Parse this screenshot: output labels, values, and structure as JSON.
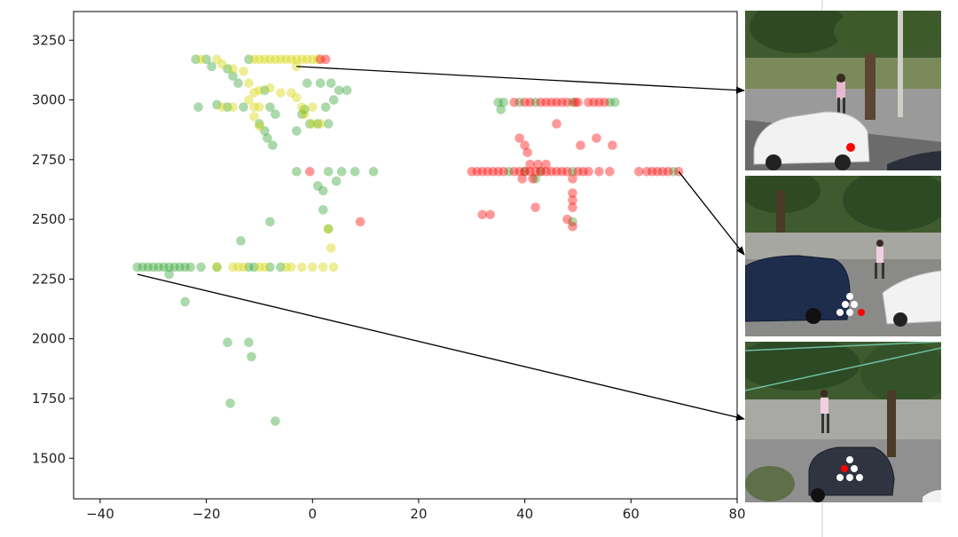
{
  "chart_data": {
    "type": "scatter",
    "title": "",
    "xlabel": "",
    "ylabel": "",
    "xlim": [
      -45,
      80
    ],
    "ylim": [
      1330,
      3370
    ],
    "xticks": [
      -40,
      -20,
      0,
      20,
      40,
      60,
      80
    ],
    "yticks": [
      1500,
      1750,
      2000,
      2250,
      2500,
      2750,
      3000,
      3250
    ],
    "grid": false,
    "legend": "none",
    "point_alpha": 0.4,
    "series": [
      {
        "color": "#2ca02c",
        "points": [
          [
            -22,
            3170
          ],
          [
            -20,
            3170
          ],
          [
            -19,
            3140
          ],
          [
            -16,
            3130
          ],
          [
            -15,
            3100
          ],
          [
            -14,
            3070
          ],
          [
            -12,
            3170
          ],
          [
            -9,
            3040
          ],
          [
            -21.5,
            2970
          ],
          [
            -18,
            2980
          ],
          [
            -16,
            2970
          ],
          [
            -13,
            2970
          ],
          [
            -8,
            2970
          ],
          [
            -7,
            2940
          ],
          [
            -1,
            3070
          ],
          [
            1.5,
            3070
          ],
          [
            3.5,
            3070
          ],
          [
            5,
            3040
          ],
          [
            6.5,
            3040
          ],
          [
            4,
            3000
          ],
          [
            2.5,
            2970
          ],
          [
            -1.5,
            2960
          ],
          [
            -2,
            2940
          ],
          [
            -0.5,
            2900
          ],
          [
            1,
            2900
          ],
          [
            3,
            2900
          ],
          [
            -10,
            2900
          ],
          [
            -9,
            2870
          ],
          [
            -8.5,
            2840
          ],
          [
            -7.5,
            2810
          ],
          [
            -3,
            2870
          ],
          [
            -3,
            2700
          ],
          [
            1,
            2640
          ],
          [
            2,
            2620
          ],
          [
            3,
            2700
          ],
          [
            4.5,
            2660
          ],
          [
            5.5,
            2700
          ],
          [
            8,
            2700
          ],
          [
            11.5,
            2700
          ],
          [
            2,
            2540
          ],
          [
            3,
            2460
          ],
          [
            -8,
            2490
          ],
          [
            -13.5,
            2410
          ],
          [
            -33,
            2300
          ],
          [
            -32,
            2300
          ],
          [
            -31,
            2300
          ],
          [
            -30,
            2300
          ],
          [
            -29,
            2300
          ],
          [
            -28,
            2300
          ],
          [
            -27,
            2300
          ],
          [
            -26,
            2300
          ],
          [
            -25,
            2300
          ],
          [
            -24,
            2300
          ],
          [
            -23,
            2300
          ],
          [
            -21,
            2300
          ],
          [
            -18,
            2300
          ],
          [
            -12,
            2300
          ],
          [
            -11,
            2300
          ],
          [
            -8,
            2300
          ],
          [
            -6,
            2300
          ],
          [
            -27,
            2270
          ],
          [
            -24,
            2155
          ],
          [
            -16,
            1985
          ],
          [
            -12,
            1985
          ],
          [
            -11.5,
            1925
          ],
          [
            -15.5,
            1730
          ],
          [
            -7,
            1655
          ],
          [
            35,
            2990
          ],
          [
            35.5,
            2960
          ],
          [
            36,
            2990
          ],
          [
            39,
            2990
          ],
          [
            42,
            2990
          ],
          [
            49,
            2990
          ],
          [
            56,
            2990
          ],
          [
            57,
            2990
          ],
          [
            37,
            2700
          ],
          [
            40,
            2700
          ],
          [
            43,
            2700
          ],
          [
            49,
            2700
          ],
          [
            68,
            2700
          ],
          [
            42,
            2670
          ],
          [
            49,
            2490
          ]
        ]
      },
      {
        "color": "#d4d400",
        "points": [
          [
            -21,
            3170
          ],
          [
            -18,
            3170
          ],
          [
            -17,
            3150
          ],
          [
            -15,
            3130
          ],
          [
            -13,
            3120
          ],
          [
            -11,
            3170
          ],
          [
            -10,
            3170
          ],
          [
            -9,
            3170
          ],
          [
            -8,
            3170
          ],
          [
            -7,
            3170
          ],
          [
            -6,
            3170
          ],
          [
            -5,
            3170
          ],
          [
            -4,
            3170
          ],
          [
            -3,
            3170
          ],
          [
            -2,
            3170
          ],
          [
            -1,
            3170
          ],
          [
            0,
            3170
          ],
          [
            1,
            3170
          ],
          [
            -3,
            3140
          ],
          [
            -12,
            3070
          ],
          [
            -10,
            3040
          ],
          [
            -8,
            3050
          ],
          [
            -6,
            3030
          ],
          [
            -11,
            3030
          ],
          [
            -4,
            3030
          ],
          [
            -3,
            3010
          ],
          [
            -12,
            3000
          ],
          [
            -10,
            2970
          ],
          [
            -17,
            2970
          ],
          [
            -15,
            2970
          ],
          [
            -11,
            2970
          ],
          [
            -2,
            2970
          ],
          [
            0,
            2970
          ],
          [
            -11,
            2930
          ],
          [
            -10,
            2890
          ],
          [
            0,
            2900
          ],
          [
            1.5,
            2900
          ],
          [
            -1.5,
            2940
          ],
          [
            -18,
            2300
          ],
          [
            -15,
            2300
          ],
          [
            -14,
            2300
          ],
          [
            -13,
            2300
          ],
          [
            -10,
            2300
          ],
          [
            -9,
            2300
          ],
          [
            -5,
            2300
          ],
          [
            -4,
            2300
          ],
          [
            -2,
            2300
          ],
          [
            0,
            2300
          ],
          [
            2,
            2300
          ],
          [
            4,
            2300
          ],
          [
            3,
            2460
          ],
          [
            3.5,
            2380
          ]
        ]
      },
      {
        "color": "#ff0000",
        "points": [
          [
            1.5,
            3170
          ],
          [
            2.5,
            3170
          ],
          [
            -0.5,
            2700
          ],
          [
            9,
            2490
          ],
          [
            38,
            2990
          ],
          [
            40,
            2990
          ],
          [
            41,
            2990
          ],
          [
            43,
            2990
          ],
          [
            44,
            2990
          ],
          [
            45,
            2990
          ],
          [
            46,
            2990
          ],
          [
            47,
            2990
          ],
          [
            48,
            2990
          ],
          [
            49.5,
            2990
          ],
          [
            50,
            2990
          ],
          [
            52,
            2990
          ],
          [
            53,
            2990
          ],
          [
            54,
            2990
          ],
          [
            55,
            2990
          ],
          [
            46,
            2900
          ],
          [
            39,
            2840
          ],
          [
            40,
            2810
          ],
          [
            40.5,
            2780
          ],
          [
            50.5,
            2810
          ],
          [
            53.5,
            2840
          ],
          [
            56.5,
            2810
          ],
          [
            30,
            2700
          ],
          [
            31,
            2700
          ],
          [
            32,
            2700
          ],
          [
            33,
            2700
          ],
          [
            34,
            2700
          ],
          [
            35,
            2700
          ],
          [
            36,
            2700
          ],
          [
            38,
            2700
          ],
          [
            39,
            2700
          ],
          [
            40,
            2700
          ],
          [
            41,
            2700
          ],
          [
            42,
            2700
          ],
          [
            43,
            2700
          ],
          [
            44,
            2700
          ],
          [
            45,
            2700
          ],
          [
            46,
            2700
          ],
          [
            47,
            2700
          ],
          [
            48,
            2700
          ],
          [
            50,
            2700
          ],
          [
            51,
            2700
          ],
          [
            52,
            2700
          ],
          [
            54,
            2700
          ],
          [
            56,
            2700
          ],
          [
            61.5,
            2700
          ],
          [
            63,
            2700
          ],
          [
            64,
            2700
          ],
          [
            65,
            2700
          ],
          [
            66,
            2700
          ],
          [
            67,
            2700
          ],
          [
            69,
            2700
          ],
          [
            41,
            2730
          ],
          [
            42.5,
            2730
          ],
          [
            44,
            2730
          ],
          [
            39.5,
            2670
          ],
          [
            41.5,
            2670
          ],
          [
            49,
            2670
          ],
          [
            49,
            2610
          ],
          [
            49,
            2580
          ],
          [
            49,
            2550
          ],
          [
            42,
            2550
          ],
          [
            48,
            2500
          ],
          [
            49,
            2470
          ],
          [
            32,
            2520
          ],
          [
            33.5,
            2520
          ]
        ]
      }
    ],
    "annotation_arrows": [
      {
        "from": [
          -3,
          3140
        ],
        "to_thumbnail": 0
      },
      {
        "from": [
          69,
          2700
        ],
        "to_thumbnail": 1
      },
      {
        "from": [
          -33,
          2270
        ],
        "to_thumbnail": 2
      }
    ]
  },
  "thumbnails": [
    {
      "subject": "white car with pedestrian on sidewalk",
      "car_color": "#f2f2f2",
      "marker_color": "#ff0000"
    },
    {
      "subject": "dark blue car with pedestrian on sidewalk",
      "car_color": "#1f2d4d",
      "marker_color": "#ff0000"
    },
    {
      "subject": "dark gray car with pedestrian on sidewalk",
      "car_color": "#2f3440",
      "marker_color": "#ff0000"
    }
  ]
}
